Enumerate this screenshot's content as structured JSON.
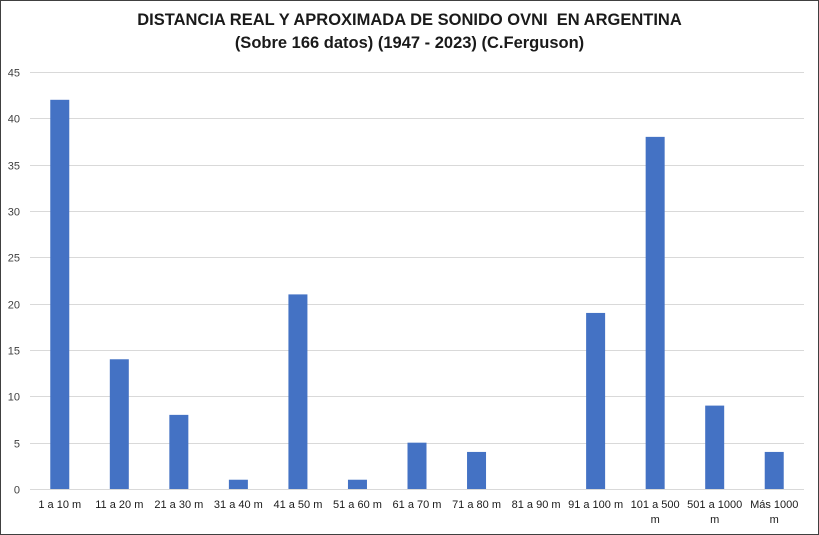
{
  "chart_data": {
    "type": "bar",
    "title": "DISTANCIA REAL Y APROXIMADA DE SONIDO OVNI  EN ARGENTINA",
    "subtitle": "(Sobre 166 datos) (1947 - 2023) (C.Ferguson)",
    "xlabel": "",
    "ylabel": "",
    "ylim": [
      0,
      45
    ],
    "yticks": [
      0,
      5,
      10,
      15,
      20,
      25,
      30,
      35,
      40,
      45
    ],
    "grid": true,
    "legend": "none",
    "bar_color": "#4472C4",
    "categories": [
      [
        "1 a 10 m"
      ],
      [
        "11 a 20 m"
      ],
      [
        "21 a 30 m"
      ],
      [
        "31 a 40 m"
      ],
      [
        "41 a 50 m"
      ],
      [
        "51 a 60 m"
      ],
      [
        "61 a 70 m"
      ],
      [
        "71 a 80 m"
      ],
      [
        "81 a 90 m"
      ],
      [
        "91 a 100 m"
      ],
      [
        "101 a 500",
        "m"
      ],
      [
        "501 a 1000",
        "m"
      ],
      [
        "Más 1000",
        "m"
      ]
    ],
    "values": [
      42,
      14,
      8,
      1,
      21,
      1,
      5,
      4,
      0,
      19,
      38,
      9,
      4
    ]
  }
}
